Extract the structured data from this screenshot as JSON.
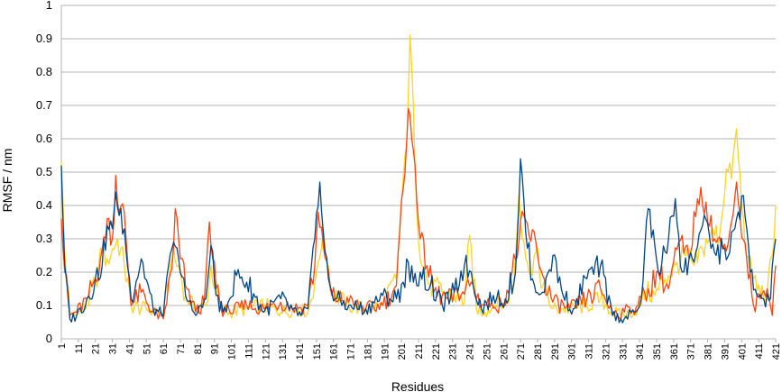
{
  "chart_data": {
    "type": "line",
    "title": "",
    "xlabel": "Residues",
    "ylabel": "RMSF / nm",
    "x_range": [
      1,
      421
    ],
    "ylim": [
      0,
      1
    ],
    "yticks": [
      "0",
      "0.1",
      "0.2",
      "0.3",
      "0.4",
      "0.5",
      "0.6",
      "0.7",
      "0.8",
      "0.9",
      "1"
    ],
    "xticks": [
      "1",
      "11",
      "21",
      "31",
      "41",
      "51",
      "61",
      "71",
      "81",
      "91",
      "101",
      "111",
      "121",
      "131",
      "141",
      "151",
      "161",
      "171",
      "181",
      "191",
      "201",
      "211",
      "221",
      "231",
      "241",
      "251",
      "261",
      "271",
      "281",
      "291",
      "301",
      "311",
      "321",
      "331",
      "341",
      "351",
      "361",
      "371",
      "381",
      "391",
      "401",
      "411",
      "421"
    ],
    "grid": "horizontal",
    "legend": "none",
    "series": [
      {
        "color": "#ffd320",
        "x": [
          1,
          3,
          6,
          10,
          16,
          21,
          25,
          28,
          31,
          34,
          38,
          42,
          48,
          55,
          61,
          66,
          70,
          74,
          80,
          86,
          89,
          94,
          100,
          110,
          120,
          130,
          140,
          146,
          151,
          155,
          160,
          170,
          180,
          190,
          198,
          202,
          204,
          206,
          208,
          210,
          213,
          218,
          225,
          232,
          238,
          241,
          245,
          250,
          256,
          262,
          267,
          270,
          273,
          276,
          280,
          284,
          290,
          300,
          310,
          318,
          325,
          332,
          340,
          345,
          350,
          356,
          362,
          368,
          373,
          378,
          383,
          388,
          392,
          395,
          398,
          401,
          404,
          408,
          412,
          416,
          419,
          421
        ],
        "values": [
          0.53,
          0.26,
          0.08,
          0.07,
          0.1,
          0.17,
          0.26,
          0.24,
          0.27,
          0.3,
          0.22,
          0.1,
          0.09,
          0.09,
          0.07,
          0.24,
          0.22,
          0.13,
          0.09,
          0.1,
          0.22,
          0.09,
          0.08,
          0.09,
          0.1,
          0.08,
          0.09,
          0.08,
          0.2,
          0.33,
          0.14,
          0.1,
          0.09,
          0.1,
          0.18,
          0.48,
          0.58,
          0.91,
          0.7,
          0.38,
          0.22,
          0.16,
          0.14,
          0.13,
          0.11,
          0.31,
          0.09,
          0.08,
          0.1,
          0.11,
          0.16,
          0.43,
          0.29,
          0.2,
          0.26,
          0.16,
          0.09,
          0.09,
          0.1,
          0.12,
          0.08,
          0.07,
          0.09,
          0.14,
          0.13,
          0.18,
          0.22,
          0.25,
          0.22,
          0.27,
          0.32,
          0.31,
          0.51,
          0.48,
          0.63,
          0.4,
          0.24,
          0.18,
          0.13,
          0.14,
          0.25,
          0.4
        ]
      },
      {
        "color": "#ff420e",
        "x": [
          1,
          3,
          6,
          10,
          16,
          21,
          25,
          28,
          31,
          33,
          35,
          38,
          42,
          48,
          55,
          61,
          66,
          68,
          71,
          75,
          80,
          85,
          88,
          90,
          95,
          100,
          110,
          120,
          130,
          140,
          146,
          150,
          152,
          155,
          160,
          170,
          180,
          190,
          198,
          202,
          205,
          207,
          209,
          212,
          216,
          220,
          228,
          236,
          242,
          248,
          254,
          260,
          266,
          270,
          273,
          276,
          280,
          284,
          290,
          300,
          310,
          318,
          325,
          332,
          340,
          346,
          352,
          358,
          364,
          370,
          375,
          380,
          385,
          390,
          395,
          398,
          400,
          404,
          408,
          412,
          416,
          419,
          421
        ],
        "values": [
          0.36,
          0.2,
          0.07,
          0.08,
          0.12,
          0.18,
          0.27,
          0.36,
          0.3,
          0.49,
          0.38,
          0.38,
          0.1,
          0.14,
          0.08,
          0.06,
          0.21,
          0.39,
          0.24,
          0.15,
          0.08,
          0.11,
          0.35,
          0.24,
          0.09,
          0.08,
          0.1,
          0.09,
          0.11,
          0.09,
          0.1,
          0.22,
          0.38,
          0.28,
          0.13,
          0.11,
          0.09,
          0.1,
          0.16,
          0.45,
          0.69,
          0.6,
          0.52,
          0.3,
          0.22,
          0.14,
          0.12,
          0.13,
          0.17,
          0.1,
          0.11,
          0.1,
          0.2,
          0.29,
          0.37,
          0.31,
          0.29,
          0.19,
          0.11,
          0.09,
          0.12,
          0.15,
          0.08,
          0.08,
          0.1,
          0.15,
          0.2,
          0.15,
          0.29,
          0.24,
          0.42,
          0.41,
          0.3,
          0.27,
          0.35,
          0.47,
          0.37,
          0.24,
          0.1,
          0.12,
          0.15,
          0.07,
          0.22
        ]
      },
      {
        "color": "#004586",
        "x": [
          1,
          3,
          6,
          10,
          16,
          21,
          25,
          28,
          31,
          33,
          35,
          38,
          42,
          48,
          55,
          61,
          66,
          70,
          74,
          80,
          86,
          89,
          92,
          96,
          100,
          104,
          110,
          120,
          130,
          140,
          146,
          150,
          153,
          155,
          158,
          162,
          170,
          180,
          190,
          198,
          202,
          205,
          208,
          212,
          218,
          225,
          232,
          238,
          242,
          248,
          255,
          262,
          268,
          271,
          274,
          278,
          284,
          290,
          296,
          302,
          310,
          318,
          325,
          332,
          338,
          342,
          346,
          352,
          358,
          362,
          366,
          372,
          378,
          382,
          386,
          390,
          394,
          398,
          402,
          406,
          410,
          414,
          418,
          421
        ],
        "values": [
          0.52,
          0.22,
          0.06,
          0.07,
          0.12,
          0.18,
          0.22,
          0.34,
          0.33,
          0.44,
          0.37,
          0.33,
          0.12,
          0.24,
          0.09,
          0.07,
          0.27,
          0.24,
          0.13,
          0.07,
          0.12,
          0.28,
          0.13,
          0.08,
          0.12,
          0.19,
          0.17,
          0.08,
          0.12,
          0.07,
          0.09,
          0.3,
          0.47,
          0.32,
          0.18,
          0.12,
          0.1,
          0.09,
          0.13,
          0.12,
          0.17,
          0.23,
          0.17,
          0.2,
          0.16,
          0.1,
          0.14,
          0.22,
          0.2,
          0.09,
          0.13,
          0.12,
          0.2,
          0.54,
          0.32,
          0.18,
          0.14,
          0.25,
          0.13,
          0.09,
          0.18,
          0.22,
          0.07,
          0.06,
          0.08,
          0.12,
          0.39,
          0.2,
          0.3,
          0.42,
          0.2,
          0.24,
          0.34,
          0.31,
          0.25,
          0.27,
          0.26,
          0.36,
          0.43,
          0.2,
          0.13,
          0.12,
          0.12,
          0.3
        ]
      }
    ]
  }
}
